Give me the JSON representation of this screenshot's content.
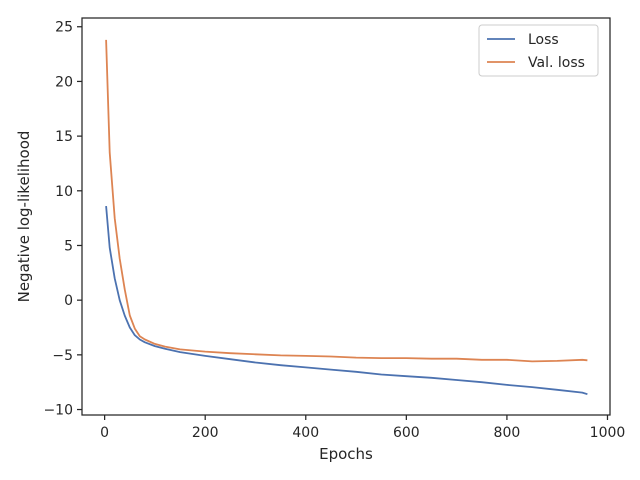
{
  "chart_data": {
    "type": "line",
    "title": "",
    "xlabel": "Epochs",
    "ylabel": "Negative log-likelihood",
    "xlim": [
      -45,
      1005
    ],
    "ylim": [
      -10.5,
      25.8
    ],
    "xticks": [
      0,
      200,
      400,
      600,
      800,
      1000
    ],
    "yticks": [
      -10,
      -5,
      0,
      5,
      10,
      15,
      20,
      25
    ],
    "xtick_labels": [
      "0",
      "200",
      "400",
      "600",
      "800",
      "1000"
    ],
    "ytick_labels": [
      "−10",
      "−5",
      "0",
      "5",
      "10",
      "15",
      "20",
      "25"
    ],
    "grid": false,
    "legend_position": "top-right",
    "series": [
      {
        "name": "Loss",
        "color": "#4c72b0",
        "x": [
          3,
          10,
          20,
          30,
          40,
          50,
          60,
          70,
          80,
          100,
          120,
          150,
          200,
          250,
          300,
          350,
          400,
          450,
          500,
          550,
          600,
          650,
          700,
          750,
          800,
          850,
          900,
          950,
          960
        ],
        "y": [
          8.6,
          4.8,
          2.0,
          0.0,
          -1.4,
          -2.5,
          -3.2,
          -3.6,
          -3.85,
          -4.2,
          -4.45,
          -4.75,
          -5.1,
          -5.4,
          -5.7,
          -5.95,
          -6.15,
          -6.35,
          -6.55,
          -6.8,
          -6.95,
          -7.1,
          -7.3,
          -7.5,
          -7.75,
          -7.95,
          -8.2,
          -8.45,
          -8.6
        ]
      },
      {
        "name": "Val. loss",
        "color": "#dd8452",
        "x": [
          3,
          10,
          20,
          30,
          40,
          50,
          60,
          70,
          80,
          100,
          120,
          150,
          200,
          250,
          300,
          350,
          400,
          450,
          500,
          550,
          600,
          650,
          700,
          750,
          800,
          850,
          900,
          950,
          960
        ],
        "y": [
          23.8,
          13.5,
          7.5,
          3.8,
          1.0,
          -1.4,
          -2.6,
          -3.3,
          -3.6,
          -4.0,
          -4.25,
          -4.5,
          -4.7,
          -4.85,
          -4.95,
          -5.05,
          -5.1,
          -5.15,
          -5.25,
          -5.3,
          -5.3,
          -5.35,
          -5.35,
          -5.45,
          -5.45,
          -5.6,
          -5.55,
          -5.45,
          -5.5
        ]
      }
    ]
  }
}
